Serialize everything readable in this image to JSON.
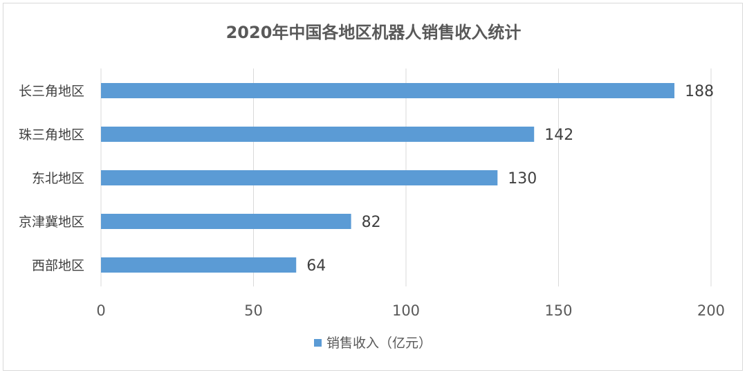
{
  "chart_data": {
    "type": "bar",
    "orientation": "horizontal",
    "title": "2020年中国各地区机器人销售收入统计",
    "categories": [
      "长三角地区",
      "珠三角地区",
      "东北地区",
      "京津冀地区",
      "西部地区"
    ],
    "series": [
      {
        "name": "销售收入（亿元）",
        "values": [
          188,
          142,
          130,
          82,
          64
        ],
        "color": "#5b9bd5"
      }
    ],
    "xlim": [
      0,
      200
    ],
    "xticks": [
      0,
      50,
      100,
      150,
      200
    ],
    "xlabel": "",
    "ylabel": "",
    "grid": true,
    "legend_position": "bottom",
    "data_labels": true
  }
}
